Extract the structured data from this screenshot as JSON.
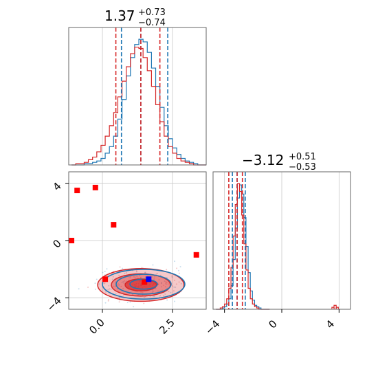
{
  "colors": {
    "series_a": "#1f77b4",
    "series_b": "#d62728",
    "truth": "#0000ff",
    "points": "#ff0000",
    "grid": "#c8c8c8",
    "axes": "#666666"
  },
  "titles": {
    "p1": {
      "value": "1.37",
      "plus": "+0.73",
      "minus": "−0.74"
    },
    "p2": {
      "value": "−3.12",
      "plus": "+0.51",
      "minus": "−0.53"
    }
  },
  "chart_data": [
    {
      "type": "histogram",
      "panel": "top-left",
      "xlim": [
        -1.2,
        3.7
      ],
      "show_y_ticks": false,
      "grid": true,
      "series": [
        {
          "color": "blue",
          "bins": [
            -1.1,
            -0.95,
            -0.8,
            -0.65,
            -0.5,
            -0.35,
            -0.2,
            -0.05,
            0.1,
            0.25,
            0.4,
            0.55,
            0.7,
            0.85,
            1.0,
            1.15,
            1.3,
            1.45,
            1.6,
            1.75,
            1.9,
            2.05,
            2.2,
            2.35,
            2.5,
            2.65,
            2.8,
            2.95,
            3.1,
            3.25,
            3.4,
            3.55
          ],
          "counts": [
            0,
            0,
            0,
            1,
            1,
            2,
            3,
            5,
            9,
            14,
            22,
            35,
            50,
            68,
            82,
            92,
            96,
            94,
            86,
            74,
            60,
            44,
            30,
            20,
            13,
            8,
            5,
            3,
            2,
            1,
            0,
            0
          ]
        },
        {
          "color": "red",
          "bins": [
            -1.1,
            -0.95,
            -0.8,
            -0.65,
            -0.5,
            -0.35,
            -0.2,
            -0.05,
            0.1,
            0.25,
            0.4,
            0.55,
            0.7,
            0.85,
            1.0,
            1.15,
            1.3,
            1.45,
            1.6,
            1.75,
            1.9,
            2.05,
            2.2,
            2.35,
            2.5,
            2.65,
            2.8,
            2.95,
            3.1,
            3.25,
            3.4,
            3.55
          ],
          "counts": [
            0,
            1,
            1,
            2,
            4,
            6,
            10,
            15,
            22,
            30,
            40,
            52,
            64,
            75,
            85,
            90,
            89,
            82,
            72,
            60,
            46,
            33,
            22,
            14,
            9,
            5,
            3,
            2,
            1,
            0,
            0,
            0
          ]
        }
      ],
      "quantiles": {
        "blue": [
          0.68,
          1.37,
          2.33
        ],
        "red": [
          0.48,
          1.37,
          2.05
        ]
      },
      "x_ticks": [],
      "y_ticks": []
    },
    {
      "type": "scatter-contour",
      "panel": "bottom-left",
      "xlim": [
        -1.2,
        3.7
      ],
      "ylim": [
        -4.8,
        4.8
      ],
      "grid": true,
      "x_ticks": [
        0.0,
        2.5
      ],
      "x_tick_labels": [
        "0.0",
        "2.5"
      ],
      "y_ticks": [
        -4,
        0,
        4
      ],
      "y_tick_labels": [
        "−4",
        "0",
        "4"
      ],
      "contour_center": {
        "x": 1.37,
        "y": -3.1
      },
      "contour_sigma": {
        "x": 0.7,
        "y": 0.52
      },
      "red_squares": [
        {
          "x": -1.1,
          "y": 0.0
        },
        {
          "x": -0.9,
          "y": 3.5
        },
        {
          "x": -0.25,
          "y": 3.7
        },
        {
          "x": 0.4,
          "y": 1.1
        },
        {
          "x": 3.35,
          "y": -1.0
        },
        {
          "x": 0.1,
          "y": -2.7
        },
        {
          "x": 1.5,
          "y": -2.9
        }
      ],
      "truth_marker": {
        "x": 1.65,
        "y": -2.7
      }
    },
    {
      "type": "histogram",
      "panel": "bottom-right",
      "xlim": [
        -4.8,
        4.8
      ],
      "show_y_ticks": false,
      "grid": true,
      "series": [
        {
          "color": "blue",
          "bins": [
            -4.6,
            -4.45,
            -4.3,
            -4.15,
            -4.0,
            -3.85,
            -3.7,
            -3.55,
            -3.4,
            -3.25,
            -3.1,
            -2.95,
            -2.8,
            -2.65,
            -2.5,
            -2.35,
            -2.2,
            -2.05,
            -1.9,
            -1.75,
            -1.6,
            -1.45,
            -1.3,
            -1.15,
            -1.0
          ],
          "counts": [
            0,
            0,
            0,
            1,
            2,
            4,
            8,
            18,
            38,
            62,
            85,
            95,
            88,
            70,
            48,
            28,
            14,
            7,
            3,
            2,
            1,
            0,
            0,
            0,
            0
          ]
        },
        {
          "color": "red",
          "bins": [
            -4.6,
            -4.45,
            -4.3,
            -4.15,
            -4.0,
            -3.85,
            -3.7,
            -3.55,
            -3.4,
            -3.25,
            -3.1,
            -2.95,
            -2.8,
            -2.65,
            -2.5,
            -2.35,
            -2.2,
            -2.05,
            -1.9,
            -1.75,
            -1.6,
            -1.45,
            -1.3,
            -1.15,
            -1.0
          ],
          "counts": [
            0,
            0,
            1,
            2,
            4,
            8,
            16,
            32,
            56,
            80,
            96,
            90,
            72,
            50,
            30,
            16,
            8,
            4,
            2,
            1,
            0,
            0,
            0,
            0,
            0
          ]
        }
      ],
      "outlier_bins": {
        "x": [
          3.5,
          3.65,
          3.8
        ],
        "counts": [
          1,
          2,
          1
        ]
      },
      "quantiles": {
        "blue": [
          -3.45,
          -3.12,
          -2.55
        ],
        "red": [
          -3.7,
          -3.12,
          -2.75
        ]
      },
      "x_ticks": [
        -4,
        0,
        4
      ],
      "x_tick_labels": [
        "−4",
        "0",
        "4"
      ],
      "y_ticks": []
    }
  ]
}
